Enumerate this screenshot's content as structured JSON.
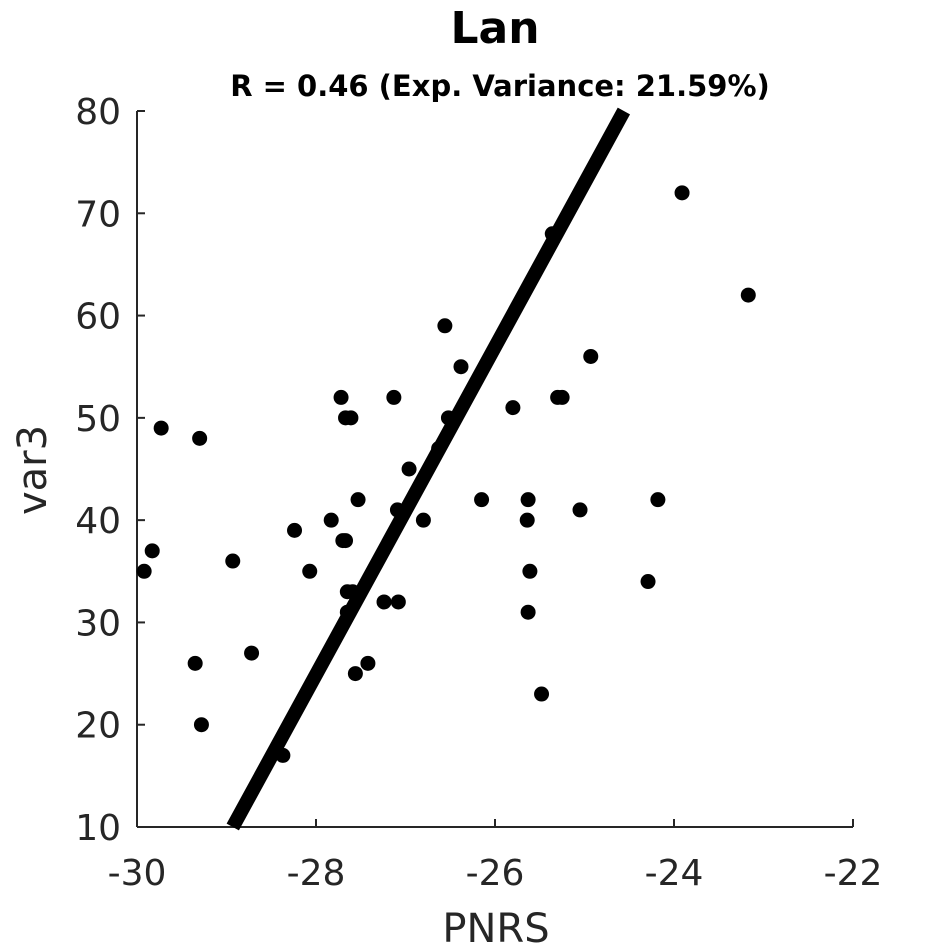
{
  "chart_data": {
    "type": "scatter",
    "title": "Lan",
    "subtitle": "R = 0.46 (Exp. Variance: 21.59%)",
    "xlabel": "PNRS",
    "ylabel": "var3",
    "xlim": [
      -30,
      -22
    ],
    "ylim": [
      10,
      80
    ],
    "xticks": [
      -30,
      -28,
      -26,
      -24,
      -22
    ],
    "yticks": [
      10,
      20,
      30,
      40,
      50,
      60,
      70,
      80
    ],
    "grid": false,
    "fit_line": {
      "x": [
        -28.93,
        -24.56
      ],
      "y": [
        10,
        80
      ]
    },
    "colors": {
      "points": "#000000",
      "fit_line": "#000000",
      "axis": "#262626"
    },
    "points": [
      {
        "x": -29.92,
        "y": 35
      },
      {
        "x": -29.83,
        "y": 37
      },
      {
        "x": -29.73,
        "y": 49
      },
      {
        "x": -29.35,
        "y": 26
      },
      {
        "x": -29.3,
        "y": 48
      },
      {
        "x": -29.28,
        "y": 20
      },
      {
        "x": -28.93,
        "y": 36
      },
      {
        "x": -28.72,
        "y": 27
      },
      {
        "x": -28.37,
        "y": 17
      },
      {
        "x": -28.24,
        "y": 39
      },
      {
        "x": -28.07,
        "y": 35
      },
      {
        "x": -27.83,
        "y": 40
      },
      {
        "x": -27.72,
        "y": 52
      },
      {
        "x": -27.7,
        "y": 38
      },
      {
        "x": -27.67,
        "y": 38
      },
      {
        "x": -27.67,
        "y": 50
      },
      {
        "x": -27.61,
        "y": 50
      },
      {
        "x": -27.65,
        "y": 33
      },
      {
        "x": -27.65,
        "y": 31
      },
      {
        "x": -27.59,
        "y": 33
      },
      {
        "x": -27.56,
        "y": 25
      },
      {
        "x": -27.53,
        "y": 42
      },
      {
        "x": -27.42,
        "y": 26
      },
      {
        "x": -27.24,
        "y": 32
      },
      {
        "x": -27.13,
        "y": 52
      },
      {
        "x": -27.09,
        "y": 41
      },
      {
        "x": -27.08,
        "y": 32
      },
      {
        "x": -26.96,
        "y": 45
      },
      {
        "x": -26.8,
        "y": 40
      },
      {
        "x": -26.63,
        "y": 47
      },
      {
        "x": -26.56,
        "y": 59
      },
      {
        "x": -26.52,
        "y": 50
      },
      {
        "x": -26.38,
        "y": 55
      },
      {
        "x": -26.15,
        "y": 42
      },
      {
        "x": -25.8,
        "y": 51
      },
      {
        "x": -25.64,
        "y": 40
      },
      {
        "x": -25.63,
        "y": 42
      },
      {
        "x": -25.63,
        "y": 31
      },
      {
        "x": -25.61,
        "y": 35
      },
      {
        "x": -25.48,
        "y": 23
      },
      {
        "x": -25.36,
        "y": 68
      },
      {
        "x": -25.3,
        "y": 52
      },
      {
        "x": -25.25,
        "y": 52
      },
      {
        "x": -25.05,
        "y": 41
      },
      {
        "x": -24.93,
        "y": 56
      },
      {
        "x": -24.29,
        "y": 34
      },
      {
        "x": -24.18,
        "y": 42
      },
      {
        "x": -23.91,
        "y": 72
      },
      {
        "x": -23.17,
        "y": 62
      }
    ]
  }
}
